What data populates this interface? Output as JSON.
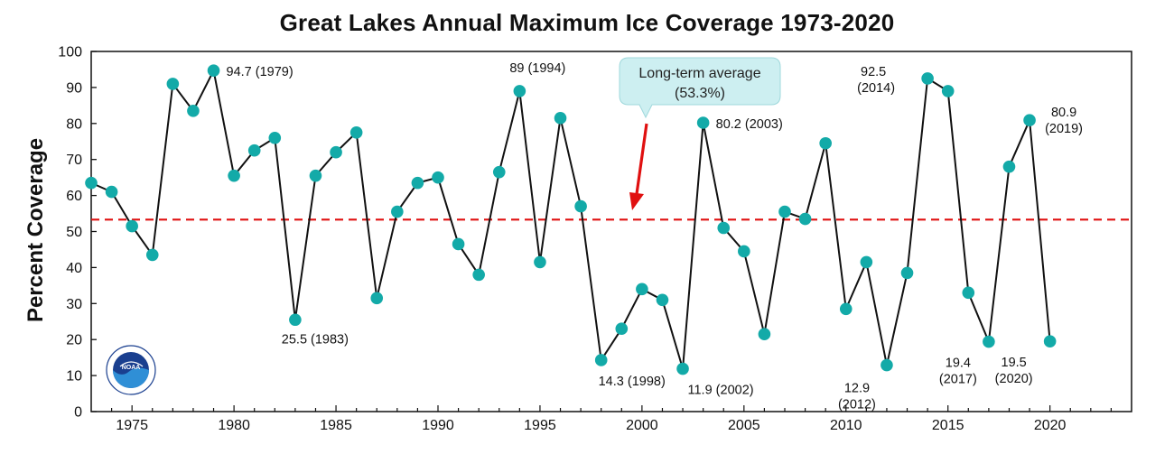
{
  "chart_data": {
    "type": "line",
    "title": "Great Lakes Annual Maximum Ice Coverage 1973-2020",
    "xlabel": "",
    "ylabel": "Percent Coverage",
    "xlim": [
      1973,
      2024
    ],
    "ylim": [
      0,
      100
    ],
    "x_ticks": [
      1975,
      1980,
      1985,
      1990,
      1995,
      2000,
      2005,
      2010,
      2015,
      2020
    ],
    "y_ticks": [
      0,
      10,
      20,
      30,
      40,
      50,
      60,
      70,
      80,
      90,
      100
    ],
    "grid": false,
    "series": [
      {
        "color": "#13aaa8",
        "x": [
          1973,
          1974,
          1975,
          1976,
          1977,
          1978,
          1979,
          1980,
          1981,
          1982,
          1983,
          1984,
          1985,
          1986,
          1987,
          1988,
          1989,
          1990,
          1991,
          1992,
          1993,
          1994,
          1995,
          1996,
          1997,
          1998,
          1999,
          2000,
          2001,
          2002,
          2003,
          2004,
          2005,
          2006,
          2007,
          2008,
          2009,
          2010,
          2011,
          2012,
          2013,
          2014,
          2015,
          2016,
          2017,
          2018,
          2019,
          2020
        ],
        "y": [
          63.5,
          61,
          51.5,
          43.5,
          91,
          83.5,
          94.7,
          65.5,
          72.5,
          76,
          25.5,
          65.5,
          72,
          77.5,
          31.5,
          55.5,
          63.5,
          65,
          46.5,
          38,
          66.5,
          89,
          41.5,
          81.5,
          57,
          14.3,
          23,
          34,
          31,
          11.9,
          80.2,
          51,
          44.5,
          21.5,
          55.5,
          53.5,
          74.5,
          28.5,
          41.5,
          12.9,
          38.5,
          92.5,
          89,
          33,
          19.4,
          68,
          80.9,
          19.5
        ]
      }
    ],
    "reference_line": {
      "value": 53.3,
      "color": "#e01010",
      "style": "dashed"
    },
    "callout": {
      "line1": "Long-term average",
      "line2": "(53.3%)"
    },
    "annotations": [
      {
        "x": 1979,
        "y": 94.7,
        "text": "94.7 (1979)"
      },
      {
        "x": 1983,
        "y": 25.5,
        "text": "25.5 (1983)"
      },
      {
        "x": 1994,
        "y": 89,
        "text": "89 (1994)"
      },
      {
        "x": 1998,
        "y": 14.3,
        "text": "14.3 (1998)"
      },
      {
        "x": 2002,
        "y": 11.9,
        "text": "11.9 (2002)"
      },
      {
        "x": 2003,
        "y": 80.2,
        "text": "80.2 (2003)"
      },
      {
        "x": 2012,
        "y": 12.9,
        "text": "12.9",
        "text2": "(2012)"
      },
      {
        "x": 2014,
        "y": 92.5,
        "text": "92.5",
        "text2": "(2014)"
      },
      {
        "x": 2017,
        "y": 19.4,
        "text": "19.4",
        "text2": "(2017)"
      },
      {
        "x": 2019,
        "y": 80.9,
        "text": "80.9",
        "text2": "(2019)"
      },
      {
        "x": 2020,
        "y": 19.5,
        "text": "19.5",
        "text2": "(2020)"
      }
    ],
    "logo": {
      "text": "NOAA",
      "ring_color": "#1a3f8f",
      "fill_color": "#2f8fd6"
    }
  }
}
